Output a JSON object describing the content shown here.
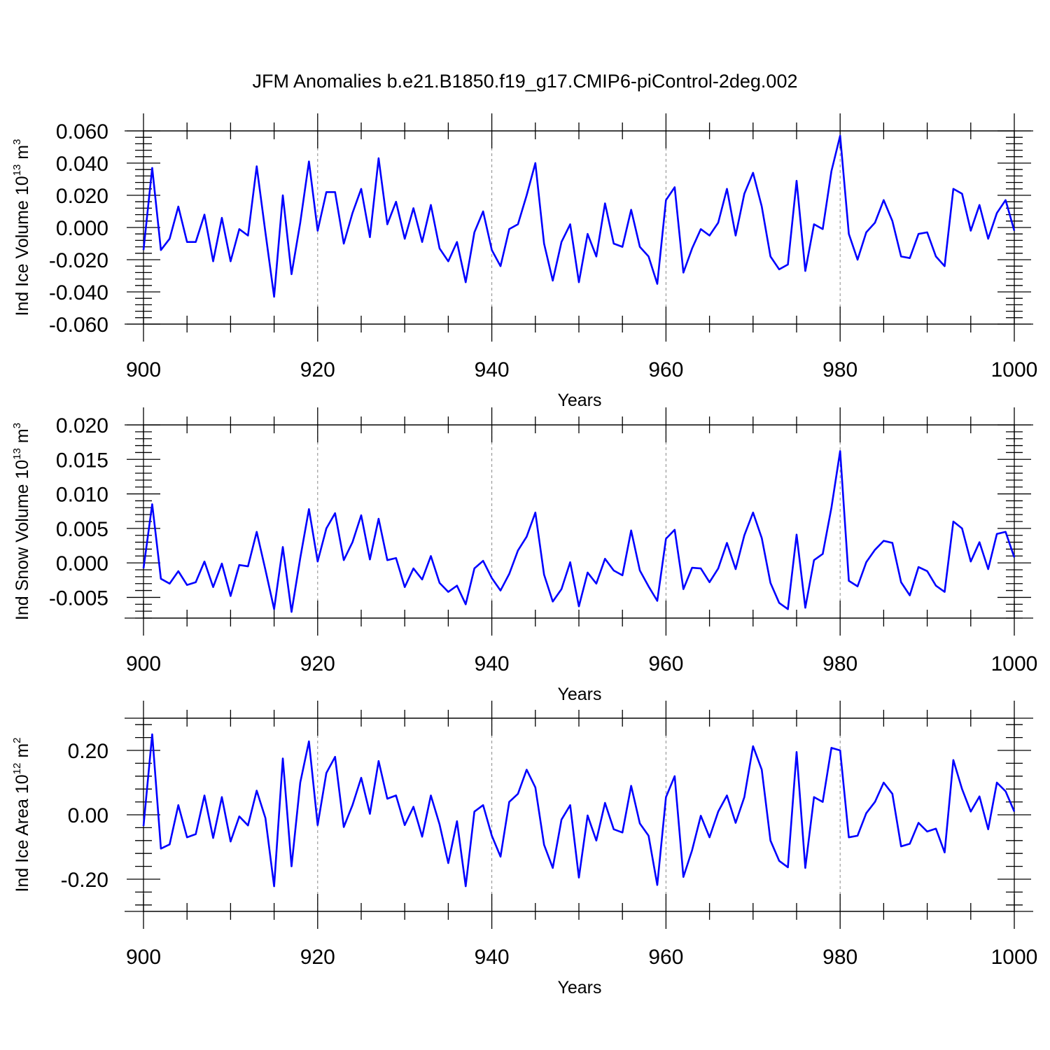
{
  "figure": {
    "title": "JFM Anomalies b.e21.B1850.f19_g17.CMIP6-piControl-2deg.002",
    "line_color": "#0000ff",
    "axis_color": "#000000",
    "gridline_color": "#888888"
  },
  "chart_data": [
    {
      "type": "line",
      "ylabel": {
        "prefix": "Ind Ice Volume 10",
        "exp": "13",
        "mid": " m",
        "unit_exp": "3"
      },
      "xlabel": "Years",
      "xlim": [
        900,
        1000
      ],
      "ylim": [
        -0.06,
        0.06
      ],
      "xticks": [
        900,
        920,
        940,
        960,
        980,
        1000
      ],
      "yticks": [
        -0.06,
        -0.04,
        -0.02,
        0,
        0.02,
        0.04,
        0.06
      ],
      "ytick_labels": [
        "-0.060",
        "-0.040",
        "-0.020",
        "0.000",
        "0.020",
        "0.040",
        "0.060"
      ],
      "x_start": 900,
      "values": [
        -0.014,
        0.037,
        -0.014,
        -0.007,
        0.013,
        -0.009,
        -0.009,
        0.008,
        -0.021,
        0.006,
        -0.021,
        -0.001,
        -0.005,
        0.038,
        -0.003,
        -0.043,
        0.02,
        -0.029,
        0.003,
        0.041,
        -0.002,
        0.022,
        0.022,
        -0.01,
        0.009,
        0.024,
        -0.006,
        0.043,
        0.002,
        0.016,
        -0.007,
        0.012,
        -0.009,
        0.014,
        -0.013,
        -0.021,
        -0.009,
        -0.034,
        -0.003,
        0.01,
        -0.014,
        -0.024,
        -0.001,
        0.002,
        0.02,
        0.04,
        -0.01,
        -0.033,
        -0.009,
        0.002,
        -0.034,
        -0.004,
        -0.018,
        0.015,
        -0.01,
        -0.012,
        0.011,
        -0.012,
        -0.018,
        -0.035,
        0.017,
        0.025,
        -0.028,
        -0.013,
        -0.001,
        -0.005,
        0.003,
        0.024,
        -0.005,
        0.021,
        0.034,
        0.013,
        -0.018,
        -0.026,
        -0.023,
        0.029,
        -0.027,
        0.002,
        -0.001,
        0.035,
        0.057,
        -0.004,
        -0.02,
        -0.003,
        0.003,
        0.017,
        0.004,
        -0.018,
        -0.019,
        -0.004,
        -0.003,
        -0.018,
        -0.024,
        0.024,
        0.021,
        -0.002,
        0.014,
        -0.007,
        0.009,
        0.017,
        -0.002
      ]
    },
    {
      "type": "line",
      "ylabel": {
        "prefix": "Ind Snow Volume 10",
        "exp": "13",
        "mid": " m",
        "unit_exp": "3"
      },
      "xlabel": "Years",
      "xlim": [
        900,
        1000
      ],
      "ylim": [
        -0.008,
        0.02
      ],
      "xticks": [
        900,
        920,
        940,
        960,
        980,
        1000
      ],
      "yticks": [
        -0.005,
        0,
        0.005,
        0.01,
        0.015,
        0.02
      ],
      "ytick_labels": [
        "-0.005",
        "0.000",
        "0.005",
        "0.010",
        "0.015",
        "0.020"
      ],
      "x_start": 900,
      "values": [
        -0.0008,
        0.0085,
        -0.0023,
        -0.003,
        -0.0012,
        -0.0032,
        -0.0028,
        0.0002,
        -0.0035,
        -0.0001,
        -0.0048,
        -0.0003,
        -0.0005,
        0.0045,
        -0.001,
        -0.0067,
        0.0023,
        -0.0071,
        0.0007,
        0.0078,
        0.0002,
        0.005,
        0.0072,
        0.0004,
        0.003,
        0.0069,
        0.0005,
        0.0064,
        0.0004,
        0.0007,
        -0.0035,
        -0.0008,
        -0.0024,
        0.001,
        -0.0029,
        -0.0042,
        -0.0033,
        -0.006,
        -0.0008,
        0.0003,
        -0.0022,
        -0.004,
        -0.0016,
        0.0018,
        0.0038,
        0.0073,
        -0.0017,
        -0.0056,
        -0.0038,
        0.0001,
        -0.0063,
        -0.0014,
        -0.003,
        0.0006,
        -0.0011,
        -0.0018,
        0.0047,
        -0.0011,
        -0.0034,
        -0.0055,
        0.0035,
        0.0048,
        -0.0038,
        -0.0007,
        -0.0008,
        -0.0028,
        -0.0008,
        0.0029,
        -0.0009,
        0.004,
        0.0073,
        0.0036,
        -0.0029,
        -0.0058,
        -0.0067,
        0.0041,
        -0.0065,
        0.0004,
        0.0013,
        0.008,
        0.0162,
        -0.0026,
        -0.0034,
        0.0001,
        0.0019,
        0.0032,
        0.0029,
        -0.0028,
        -0.0047,
        -0.0006,
        -0.0012,
        -0.0033,
        -0.0042,
        0.006,
        0.005,
        0.0002,
        0.003,
        -0.0009,
        0.0042,
        0.0045,
        0.0008
      ]
    },
    {
      "type": "line",
      "ylabel": {
        "prefix": "Ind Ice Area 10",
        "exp": "12",
        "mid": " m",
        "unit_exp": "2"
      },
      "xlabel": "Years",
      "xlim": [
        900,
        1000
      ],
      "ylim": [
        -0.3,
        0.3
      ],
      "xticks": [
        900,
        920,
        940,
        960,
        980,
        1000
      ],
      "yticks": [
        -0.2,
        0,
        0.2
      ],
      "ytick_labels": [
        "-0.20",
        "0.00",
        "0.20"
      ],
      "x_start": 900,
      "values": [
        -0.035,
        0.25,
        -0.105,
        -0.092,
        0.03,
        -0.07,
        -0.06,
        0.06,
        -0.072,
        0.055,
        -0.083,
        -0.005,
        -0.033,
        0.075,
        -0.01,
        -0.222,
        0.175,
        -0.16,
        0.1,
        0.228,
        -0.032,
        0.13,
        0.18,
        -0.038,
        0.03,
        0.115,
        0.003,
        0.167,
        0.05,
        0.06,
        -0.032,
        0.025,
        -0.068,
        0.06,
        -0.03,
        -0.15,
        -0.02,
        -0.222,
        0.01,
        0.03,
        -0.065,
        -0.13,
        0.04,
        0.065,
        0.14,
        0.085,
        -0.093,
        -0.165,
        -0.015,
        0.03,
        -0.195,
        -0.002,
        -0.08,
        0.037,
        -0.045,
        -0.055,
        0.09,
        -0.027,
        -0.065,
        -0.218,
        0.055,
        0.12,
        -0.193,
        -0.11,
        -0.003,
        -0.07,
        0.01,
        0.06,
        -0.025,
        0.055,
        0.213,
        0.14,
        -0.08,
        -0.143,
        -0.163,
        0.195,
        -0.165,
        0.055,
        0.04,
        0.208,
        0.2,
        -0.07,
        -0.065,
        0.005,
        0.04,
        0.1,
        0.065,
        -0.098,
        -0.09,
        -0.025,
        -0.052,
        -0.043,
        -0.117,
        0.17,
        0.08,
        0.01,
        0.057,
        -0.045,
        0.1,
        0.073,
        0.01
      ]
    }
  ]
}
